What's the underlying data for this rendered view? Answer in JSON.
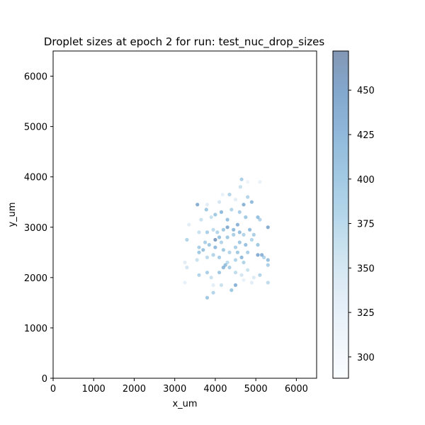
{
  "chart_data": {
    "type": "scatter",
    "title": "Droplet sizes at epoch 2 for run: test_nuc_drop_sizes",
    "xlabel": "x_um",
    "ylabel": "y_um",
    "xlim": [
      0,
      6500
    ],
    "ylim": [
      0,
      6500
    ],
    "xticks": [
      0,
      1000,
      2000,
      3000,
      4000,
      5000,
      6000
    ],
    "yticks": [
      0,
      1000,
      2000,
      3000,
      4000,
      5000,
      6000
    ],
    "grid": false,
    "colormap": "Blues",
    "marker_alpha": 0.5,
    "colorbar": {
      "range": [
        288,
        472
      ],
      "ticks": [
        300,
        325,
        350,
        375,
        400,
        425,
        450
      ]
    },
    "points": [
      [
        3560,
        3450,
        440
      ],
      [
        3800,
        3450,
        330
      ],
      [
        4100,
        3500,
        350
      ],
      [
        4180,
        3650,
        320
      ],
      [
        4350,
        3650,
        380
      ],
      [
        4650,
        3950,
        390
      ],
      [
        4620,
        3800,
        360
      ],
      [
        4800,
        3900,
        310
      ],
      [
        5100,
        3900,
        320
      ],
      [
        4500,
        3550,
        330
      ],
      [
        4700,
        3450,
        430
      ],
      [
        4900,
        3500,
        420
      ],
      [
        4800,
        3600,
        380
      ],
      [
        3900,
        3200,
        360
      ],
      [
        4000,
        3250,
        400
      ],
      [
        4150,
        3300,
        420
      ],
      [
        4400,
        3350,
        380
      ],
      [
        4600,
        3300,
        390
      ],
      [
        4750,
        3200,
        400
      ],
      [
        5050,
        3200,
        410
      ],
      [
        5100,
        3150,
        380
      ],
      [
        5300,
        3000,
        440
      ],
      [
        3350,
        3050,
        330
      ],
      [
        3650,
        3150,
        360
      ],
      [
        3780,
        3350,
        400
      ],
      [
        4300,
        3150,
        410
      ],
      [
        4300,
        3000,
        440
      ],
      [
        4450,
        2950,
        420
      ],
      [
        4550,
        3050,
        430
      ],
      [
        4200,
        2950,
        400
      ],
      [
        4050,
        2900,
        380
      ],
      [
        3950,
        2950,
        370
      ],
      [
        3800,
        2900,
        390
      ],
      [
        3600,
        2900,
        360
      ],
      [
        4100,
        2800,
        410
      ],
      [
        4000,
        2750,
        460
      ],
      [
        4150,
        2700,
        380
      ],
      [
        4300,
        2800,
        400
      ],
      [
        4450,
        2850,
        390
      ],
      [
        4600,
        2900,
        410
      ],
      [
        4700,
        2850,
        380
      ],
      [
        4850,
        2950,
        420
      ],
      [
        4950,
        2850,
        390
      ],
      [
        3300,
        2750,
        380
      ],
      [
        3600,
        2600,
        390
      ],
      [
        3700,
        2550,
        410
      ],
      [
        3850,
        2650,
        400
      ],
      [
        4000,
        2600,
        420
      ],
      [
        4200,
        2550,
        400
      ],
      [
        4350,
        2500,
        380
      ],
      [
        4500,
        2600,
        390
      ],
      [
        4600,
        2700,
        400
      ],
      [
        4750,
        2650,
        410
      ],
      [
        4900,
        2750,
        380
      ],
      [
        5050,
        2650,
        400
      ],
      [
        5150,
        2450,
        430
      ],
      [
        5300,
        2350,
        410
      ],
      [
        5300,
        2250,
        390
      ],
      [
        5200,
        2400,
        380
      ],
      [
        5050,
        2450,
        440
      ],
      [
        4800,
        2500,
        390
      ],
      [
        4650,
        2400,
        420
      ],
      [
        4500,
        2350,
        380
      ],
      [
        4300,
        2300,
        370
      ],
      [
        4100,
        2400,
        390
      ],
      [
        3950,
        2450,
        380
      ],
      [
        3800,
        2400,
        370
      ],
      [
        3600,
        2500,
        400
      ],
      [
        3550,
        2350,
        360
      ],
      [
        3250,
        2300,
        330
      ],
      [
        3300,
        2200,
        350
      ],
      [
        3600,
        2050,
        380
      ],
      [
        3800,
        2100,
        390
      ],
      [
        3900,
        2000,
        360
      ],
      [
        4100,
        2100,
        400
      ],
      [
        4200,
        2200,
        420
      ],
      [
        4350,
        2200,
        390
      ],
      [
        4500,
        2100,
        370
      ],
      [
        4650,
        2050,
        350
      ],
      [
        4800,
        2150,
        360
      ],
      [
        4950,
        2000,
        340
      ],
      [
        5100,
        2050,
        380
      ],
      [
        5300,
        1900,
        370
      ],
      [
        4900,
        1900,
        330
      ],
      [
        4700,
        1950,
        320
      ],
      [
        4500,
        1850,
        430
      ],
      [
        4400,
        1750,
        400
      ],
      [
        4150,
        1850,
        360
      ],
      [
        3950,
        1850,
        330
      ],
      [
        3800,
        1600,
        400
      ],
      [
        3950,
        1700,
        380
      ],
      [
        3250,
        1900,
        320
      ],
      [
        4250,
        2250,
        410
      ],
      [
        4550,
        2500,
        400
      ],
      [
        4700,
        2300,
        380
      ],
      [
        3750,
        2700,
        390
      ]
    ]
  }
}
